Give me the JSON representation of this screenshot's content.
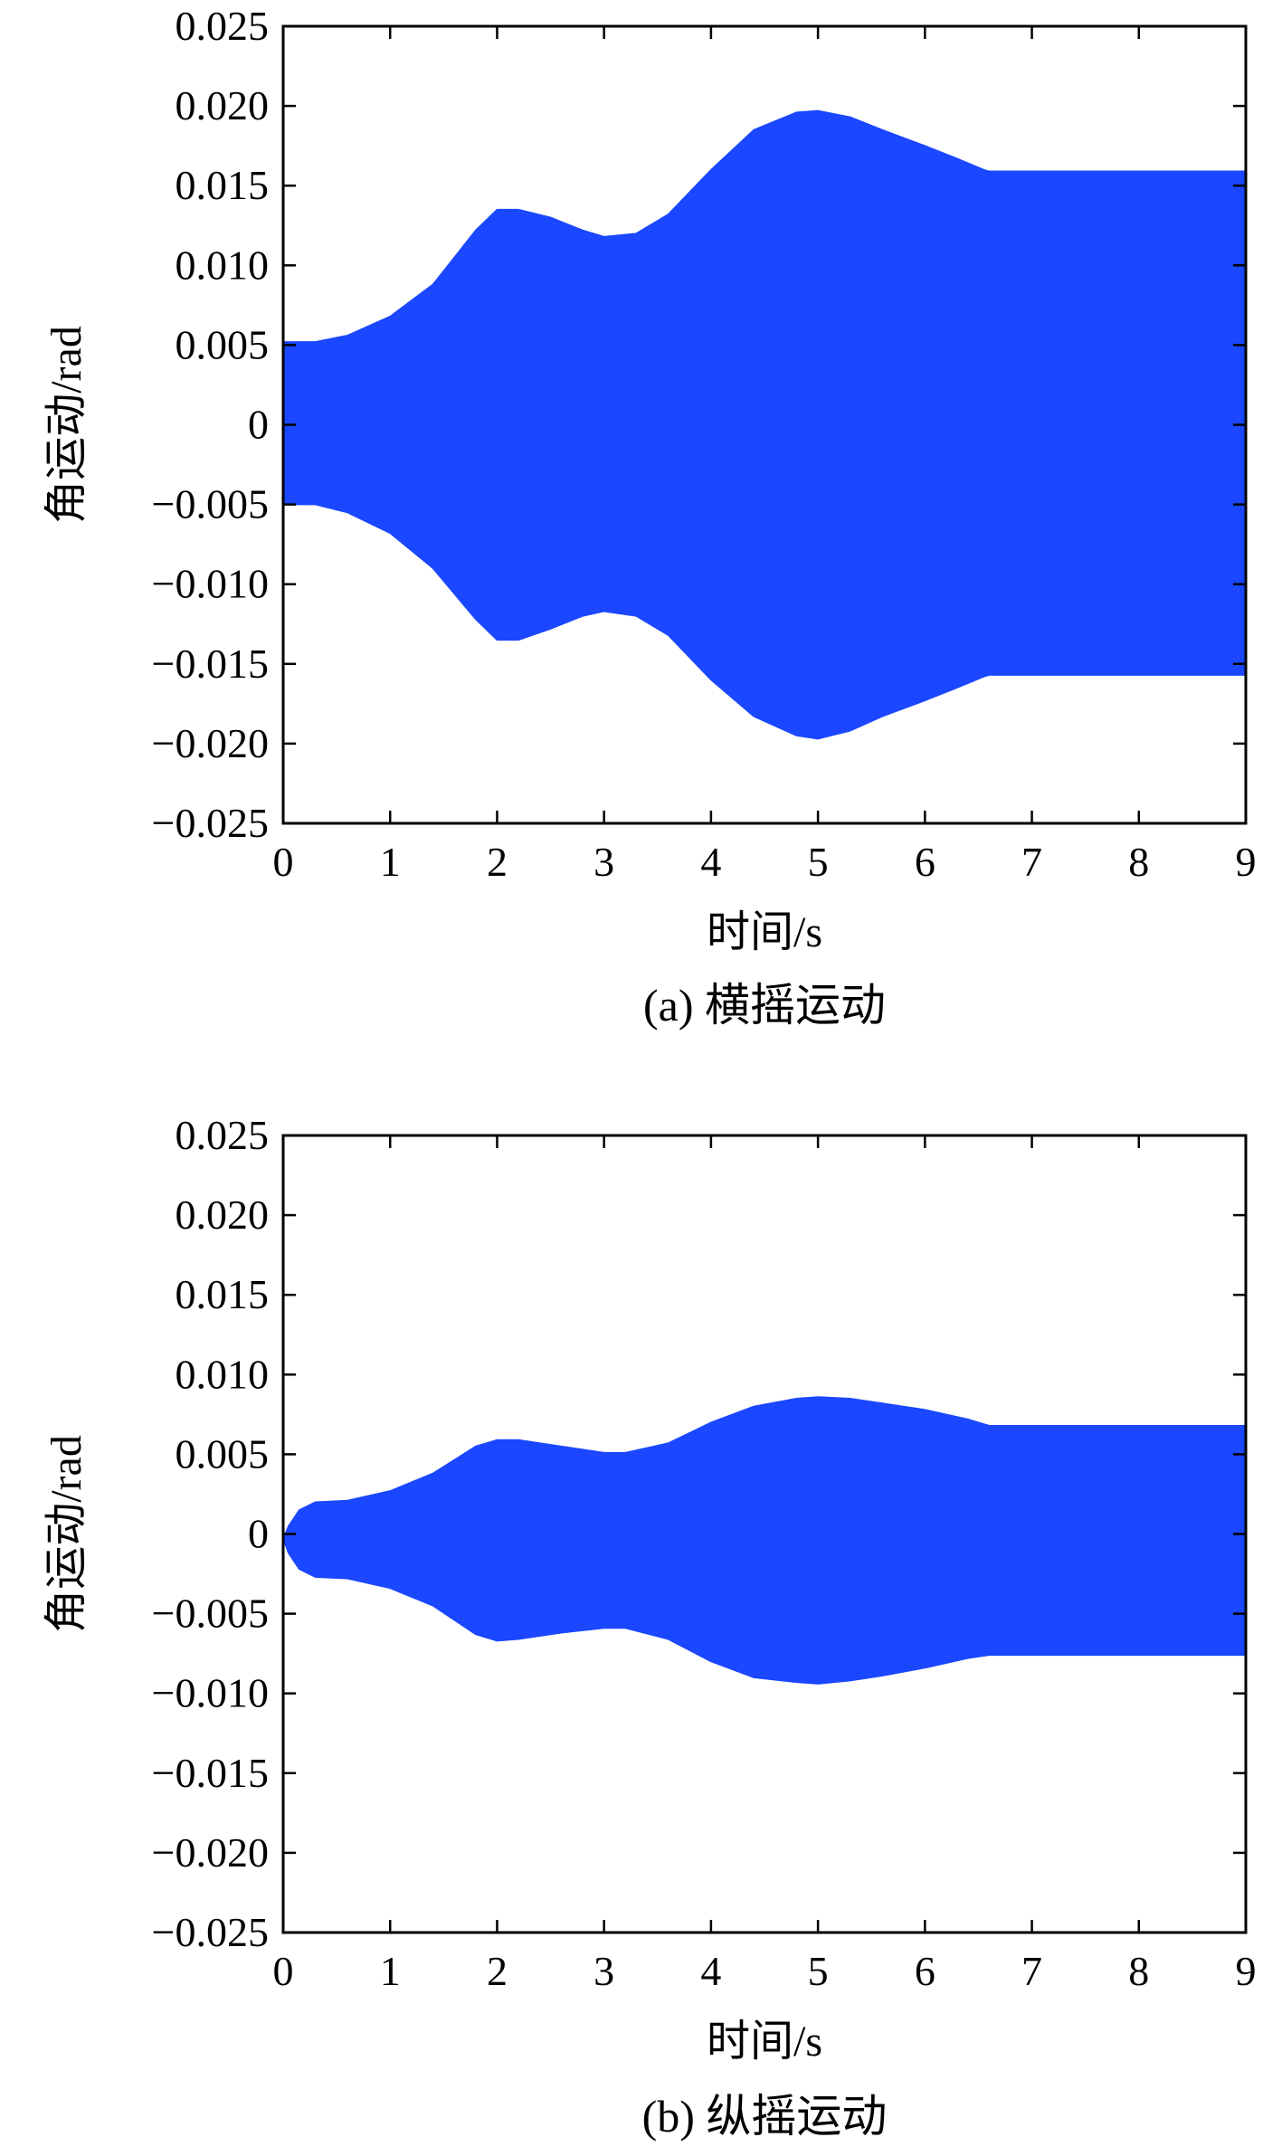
{
  "chart_data": [
    {
      "type": "area",
      "caption": "(a) 横摇运动",
      "xlabel": "时间/s",
      "ylabel": "角运动/rad",
      "xlim": [
        0,
        9
      ],
      "ylim": [
        -0.025,
        0.025
      ],
      "x_ticks": [
        "0",
        "1",
        "2",
        "3",
        "4",
        "5",
        "6",
        "7",
        "8",
        "9"
      ],
      "y_ticks": [
        "0.025",
        "0.020",
        "0.015",
        "0.010",
        "0.005",
        "0",
        "−0.005",
        "−0.010",
        "−0.015",
        "−0.020",
        "−0.025"
      ],
      "color": "#1a47ff",
      "grid": false,
      "series": [
        {
          "x": [
            0,
            0.3,
            0.6,
            1.0,
            1.4,
            1.8,
            2.0,
            2.2,
            2.5,
            2.8,
            3.0,
            3.3,
            3.6,
            4.0,
            4.4,
            4.8,
            5.0,
            5.3,
            5.6,
            6.0,
            6.3,
            6.55,
            6.6,
            9.0
          ],
          "upper": [
            0.0052,
            0.0052,
            0.0056,
            0.0068,
            0.0088,
            0.0122,
            0.0135,
            0.0135,
            0.013,
            0.0122,
            0.0118,
            0.012,
            0.0132,
            0.016,
            0.0185,
            0.0196,
            0.0197,
            0.0193,
            0.0185,
            0.0175,
            0.0167,
            0.016,
            0.0159,
            0.0159
          ],
          "lower": [
            -0.005,
            -0.005,
            -0.0055,
            -0.0068,
            -0.009,
            -0.0122,
            -0.0135,
            -0.0135,
            -0.0128,
            -0.012,
            -0.0117,
            -0.012,
            -0.0132,
            -0.016,
            -0.0183,
            -0.0195,
            -0.0197,
            -0.0192,
            -0.0183,
            -0.0173,
            -0.0165,
            -0.0158,
            -0.0157,
            -0.0157
          ]
        }
      ]
    },
    {
      "type": "area",
      "caption": "(b) 纵摇运动",
      "xlabel": "时间/s",
      "ylabel": "角运动/rad",
      "xlim": [
        0,
        9
      ],
      "ylim": [
        -0.025,
        0.025
      ],
      "x_ticks": [
        "0",
        "1",
        "2",
        "3",
        "4",
        "5",
        "6",
        "7",
        "8",
        "9"
      ],
      "y_ticks": [
        "0.025",
        "0.020",
        "0.015",
        "0.010",
        "0.005",
        "0",
        "−0.005",
        "−0.010",
        "−0.015",
        "−0.020",
        "−0.025"
      ],
      "color": "#1a47ff",
      "grid": false,
      "series": [
        {
          "x": [
            0,
            0.05,
            0.15,
            0.3,
            0.6,
            1.0,
            1.4,
            1.8,
            2.0,
            2.2,
            2.6,
            3.0,
            3.2,
            3.6,
            4.0,
            4.4,
            4.8,
            5.0,
            5.3,
            5.6,
            6.0,
            6.4,
            6.6,
            9.0
          ],
          "upper": [
            -0.0003,
            0.0005,
            0.0015,
            0.002,
            0.0021,
            0.0027,
            0.0038,
            0.0055,
            0.0059,
            0.0059,
            0.0055,
            0.0051,
            0.0051,
            0.0057,
            0.007,
            0.008,
            0.0085,
            0.0086,
            0.0085,
            0.0082,
            0.0078,
            0.0072,
            0.0068,
            0.0068
          ],
          "lower": [
            -0.0003,
            -0.0012,
            -0.0022,
            -0.0027,
            -0.0028,
            -0.0034,
            -0.0045,
            -0.0063,
            -0.0067,
            -0.0066,
            -0.0062,
            -0.0059,
            -0.0059,
            -0.0066,
            -0.008,
            -0.009,
            -0.0093,
            -0.0094,
            -0.0092,
            -0.0089,
            -0.0084,
            -0.0078,
            -0.0076,
            -0.0076
          ]
        }
      ]
    }
  ]
}
